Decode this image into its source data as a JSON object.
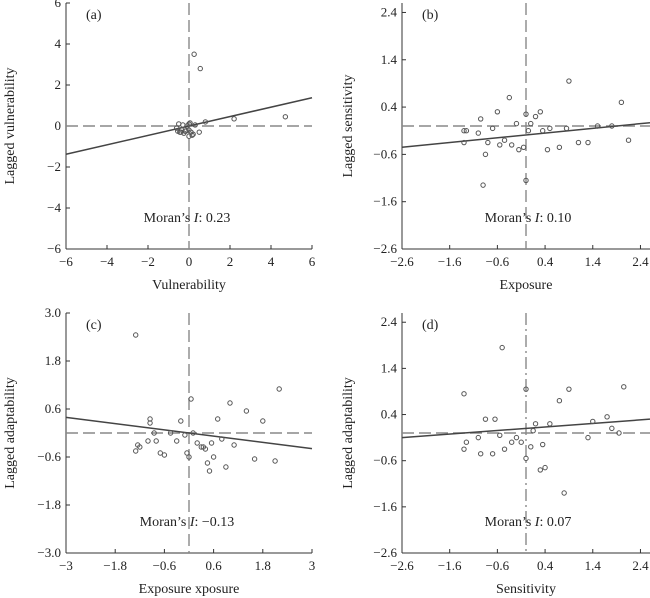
{
  "chart_data": [
    {
      "type": "scatter",
      "panel": "(a)",
      "xlabel": "Vulnerability",
      "ylabel": "Lagged vulnerability",
      "xlim": [
        -6,
        6
      ],
      "ylim": [
        -6,
        6
      ],
      "xticks": [
        "−6",
        "−4",
        "−2",
        "0",
        "2",
        "4",
        "6"
      ],
      "yticks": [
        "−6",
        "−4",
        "−2",
        "0",
        "2",
        "4",
        "6"
      ],
      "xtick_values": [
        -6,
        -4,
        -2,
        0,
        2,
        4,
        6
      ],
      "ytick_values": [
        -6,
        -4,
        -2,
        0,
        2,
        4,
        6
      ],
      "moran_prefix": "Moran’s ",
      "moran_italic": "I",
      "moran_value": ": 0.23",
      "fit_line": {
        "x": [
          -6,
          6
        ],
        "y": [
          -1.38,
          1.38
        ]
      },
      "points": {
        "x": [
          0.25,
          0.55,
          -0.55,
          -0.45,
          -0.35,
          -0.25,
          -0.15,
          0.0,
          0.1,
          0.2,
          -0.5,
          -0.3,
          -0.1,
          0.0,
          0.15,
          -0.4,
          -0.2,
          0.05,
          0.3,
          0.5,
          0.8,
          2.2,
          4.7,
          -0.6,
          0.0
        ],
        "y": [
          3.5,
          2.8,
          -0.25,
          -0.3,
          -0.2,
          -0.35,
          -0.25,
          -0.2,
          -0.3,
          -0.4,
          0.1,
          0.05,
          0.0,
          -0.5,
          -0.45,
          -0.3,
          -0.25,
          0.15,
          0.05,
          -0.3,
          0.2,
          0.35,
          0.45,
          -0.1,
          0.1
        ]
      }
    },
    {
      "type": "scatter",
      "panel": "(b)",
      "xlabel": "Exposure",
      "ylabel": "Lagged sensitivity",
      "xlim": [
        -2.6,
        2.6
      ],
      "ylim": [
        -2.6,
        2.6
      ],
      "xticks": [
        "−2.6",
        "−1.6",
        "−0.6",
        "0.4",
        "1.4",
        "2.4"
      ],
      "yticks": [
        "−2.6",
        "−1.6",
        "−0.6",
        "0.4",
        "1.4",
        "2.4"
      ],
      "xtick_values": [
        -2.6,
        -1.6,
        -0.6,
        0.4,
        1.4,
        2.4
      ],
      "ytick_values": [
        -2.6,
        -1.6,
        -0.6,
        0.4,
        1.4,
        2.4
      ],
      "moran_prefix": "Moran’s ",
      "moran_italic": "I",
      "moran_value": ": 0.10",
      "fit_line": {
        "x": [
          -2.6,
          2.6
        ],
        "y": [
          -0.45,
          0.07
        ]
      },
      "points": {
        "x": [
          -1.3,
          -1.25,
          -1.3,
          -1.0,
          -0.85,
          -0.8,
          -0.7,
          -0.6,
          -0.45,
          -0.35,
          -0.3,
          -0.2,
          -0.15,
          -0.05,
          0.0,
          0.05,
          0.1,
          0.2,
          0.3,
          0.35,
          0.45,
          0.5,
          0.7,
          0.85,
          0.9,
          1.1,
          1.3,
          1.5,
          1.8,
          2.0,
          2.15,
          -0.55,
          -0.9,
          -0.95,
          0.0
        ],
        "y": [
          -0.35,
          -0.1,
          -0.1,
          -0.15,
          -0.6,
          -0.35,
          -0.05,
          0.3,
          -0.3,
          0.6,
          -0.4,
          0.05,
          -0.5,
          -0.45,
          0.25,
          -0.1,
          0.05,
          0.2,
          0.3,
          -0.1,
          -0.5,
          -0.05,
          -0.45,
          -0.05,
          0.95,
          -0.35,
          -0.35,
          0.0,
          0.0,
          0.5,
          -0.3,
          -0.4,
          -1.25,
          0.15,
          -1.15
        ]
      }
    },
    {
      "type": "scatter",
      "panel": "(c)",
      "xlabel": "Exposure xposure",
      "ylabel": "Lagged adaptability",
      "xlim": [
        -3,
        3
      ],
      "ylim": [
        -3,
        3
      ],
      "xticks": [
        "−3",
        "−1.8",
        "−0.6",
        "0.6",
        "1.8",
        "3"
      ],
      "yticks": [
        "−3.0",
        "−1.8",
        "−0.6",
        "0.6",
        "1.8",
        "3.0"
      ],
      "xtick_values": [
        -3,
        -1.8,
        -0.6,
        0.6,
        1.8,
        3
      ],
      "ytick_values": [
        -3.0,
        -1.8,
        -0.6,
        0.6,
        1.8,
        3.0
      ],
      "moran_prefix": "Moran’s ",
      "moran_italic": "I",
      "moran_value": ": −0.13",
      "fit_line": {
        "x": [
          -3,
          3
        ],
        "y": [
          0.39,
          -0.39
        ]
      },
      "points": {
        "x": [
          -1.3,
          -1.25,
          -1.3,
          -1.0,
          -0.95,
          -0.85,
          -0.8,
          -0.7,
          -0.6,
          -0.45,
          -0.3,
          -0.2,
          -0.1,
          -0.05,
          0.0,
          0.05,
          0.1,
          0.2,
          0.35,
          0.4,
          0.5,
          0.55,
          0.6,
          0.7,
          0.8,
          0.9,
          1.0,
          1.1,
          1.4,
          1.6,
          1.8,
          2.1,
          2.2,
          -1.2,
          -0.95,
          0.3,
          0.45
        ],
        "y": [
          2.45,
          -0.3,
          -0.45,
          -0.2,
          0.35,
          0.0,
          -0.2,
          -0.5,
          -0.55,
          0.0,
          -0.2,
          0.3,
          -0.05,
          -0.5,
          -0.6,
          0.85,
          0.0,
          -0.25,
          -0.35,
          -0.4,
          -0.95,
          -0.25,
          -0.6,
          0.35,
          -0.15,
          -0.85,
          0.75,
          -0.3,
          0.55,
          -0.65,
          0.3,
          -0.7,
          1.1,
          -0.35,
          0.25,
          -0.35,
          -0.75
        ]
      }
    },
    {
      "type": "scatter",
      "panel": "(d)",
      "xlabel": "Sensitivity",
      "ylabel": "Lagged adaptability",
      "xlim": [
        -2.6,
        2.6
      ],
      "ylim": [
        -2.6,
        2.6
      ],
      "xticks": [
        "−2.6",
        "−1.6",
        "−0.6",
        "0.4",
        "1.4",
        "2.4"
      ],
      "yticks": [
        "−2.6",
        "−1.6",
        "−0.6",
        "0.4",
        "1.4",
        "2.4"
      ],
      "xtick_values": [
        -2.6,
        -1.6,
        -0.6,
        0.4,
        1.4,
        2.4
      ],
      "ytick_values": [
        -2.6,
        -1.6,
        -0.6,
        0.4,
        1.4,
        2.4
      ],
      "moran_prefix": "Moran’s ",
      "moran_italic": "I",
      "moran_value": ": 0.07",
      "fit_line": {
        "x": [
          -2.6,
          2.6
        ],
        "y": [
          -0.1,
          0.3
        ]
      },
      "points": {
        "x": [
          -1.3,
          -1.3,
          -1.25,
          -1.0,
          -0.95,
          -0.85,
          -0.7,
          -0.65,
          -0.55,
          -0.5,
          -0.3,
          -0.2,
          -0.1,
          0.0,
          0.1,
          0.15,
          0.2,
          0.3,
          0.35,
          0.5,
          0.7,
          0.8,
          0.9,
          1.3,
          1.4,
          1.7,
          1.8,
          1.95,
          2.05,
          -0.45,
          0.0,
          0.4
        ],
        "y": [
          0.85,
          -0.35,
          -0.2,
          -0.1,
          -0.45,
          0.3,
          -0.45,
          0.3,
          -0.05,
          1.85,
          -0.2,
          -0.1,
          -0.2,
          0.95,
          -0.3,
          0.05,
          0.2,
          -0.8,
          -0.25,
          0.2,
          0.7,
          -1.3,
          0.95,
          -0.1,
          0.25,
          0.35,
          0.1,
          0.0,
          1.0,
          -0.35,
          -0.55,
          -0.75
        ]
      }
    }
  ]
}
